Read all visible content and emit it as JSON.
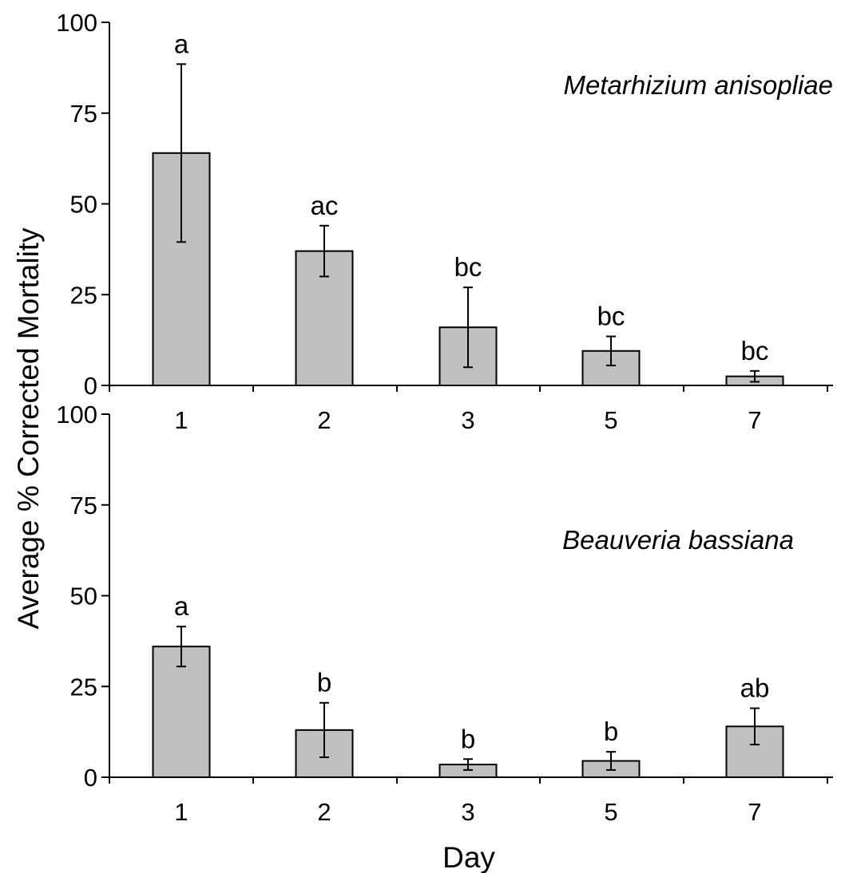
{
  "chart_data": [
    {
      "type": "bar",
      "title": "Metarhizium anisopliae",
      "xlabel": "",
      "ylabel": "Average % Corrected Mortality",
      "categories": [
        "1",
        "2",
        "3",
        "5",
        "7"
      ],
      "values": [
        64,
        37,
        16,
        9.5,
        2.5
      ],
      "errors": [
        24.5,
        7,
        11,
        4,
        1.5
      ],
      "significance_labels": [
        "a",
        "ac",
        "bc",
        "bc",
        "bc"
      ],
      "ylim": [
        0,
        100
      ],
      "yticks": [
        0,
        25,
        50,
        75,
        100
      ],
      "bar_color": "#c0c0c0",
      "grid": false,
      "legend": "none"
    },
    {
      "type": "bar",
      "title": "Beauveria bassiana",
      "xlabel": "Day",
      "ylabel": "Average % Corrected Mortality",
      "categories": [
        "1",
        "2",
        "3",
        "5",
        "7"
      ],
      "values": [
        36,
        13,
        3.5,
        4.5,
        14
      ],
      "errors": [
        5.5,
        7.5,
        1.5,
        2.5,
        5
      ],
      "significance_labels": [
        "a",
        "b",
        "b",
        "b",
        "ab"
      ],
      "ylim": [
        0,
        100
      ],
      "yticks": [
        0,
        25,
        50,
        75,
        100
      ],
      "bar_color": "#c0c0c0",
      "grid": false,
      "legend": "none"
    }
  ]
}
